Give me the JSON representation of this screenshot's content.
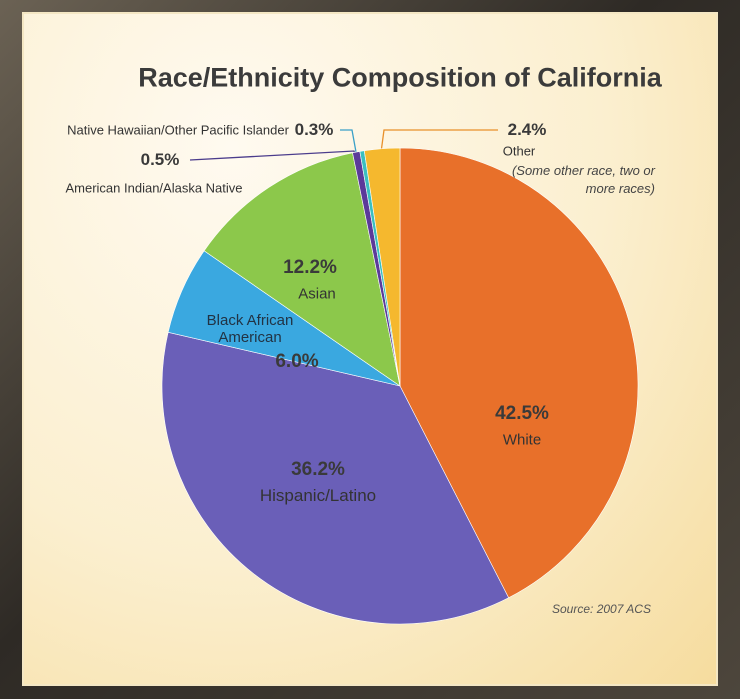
{
  "chart_data": {
    "type": "pie",
    "title": "Race/Ethnicity Composition of California",
    "categories": [
      "White",
      "Hispanic/Latino",
      "Black African American",
      "Asian",
      "American Indian/Alaska Native",
      "Native Hawaiian/Other Pacific Islander",
      "Other"
    ],
    "values": [
      42.5,
      36.2,
      6.0,
      12.2,
      0.5,
      0.3,
      2.4
    ],
    "value_labels": [
      "42.5%",
      "36.2%",
      "6.0%",
      "12.2%",
      "0.5%",
      "0.3%",
      "2.4%"
    ],
    "colors": [
      "#e8702a",
      "#6a5fb8",
      "#3aa8e0",
      "#8cc84b",
      "#5b3a9a",
      "#3bbfc0",
      "#f5b82e"
    ],
    "annotations": [
      "(Some other race, two or more races)"
    ],
    "source": "Source: 2007 ACS"
  }
}
